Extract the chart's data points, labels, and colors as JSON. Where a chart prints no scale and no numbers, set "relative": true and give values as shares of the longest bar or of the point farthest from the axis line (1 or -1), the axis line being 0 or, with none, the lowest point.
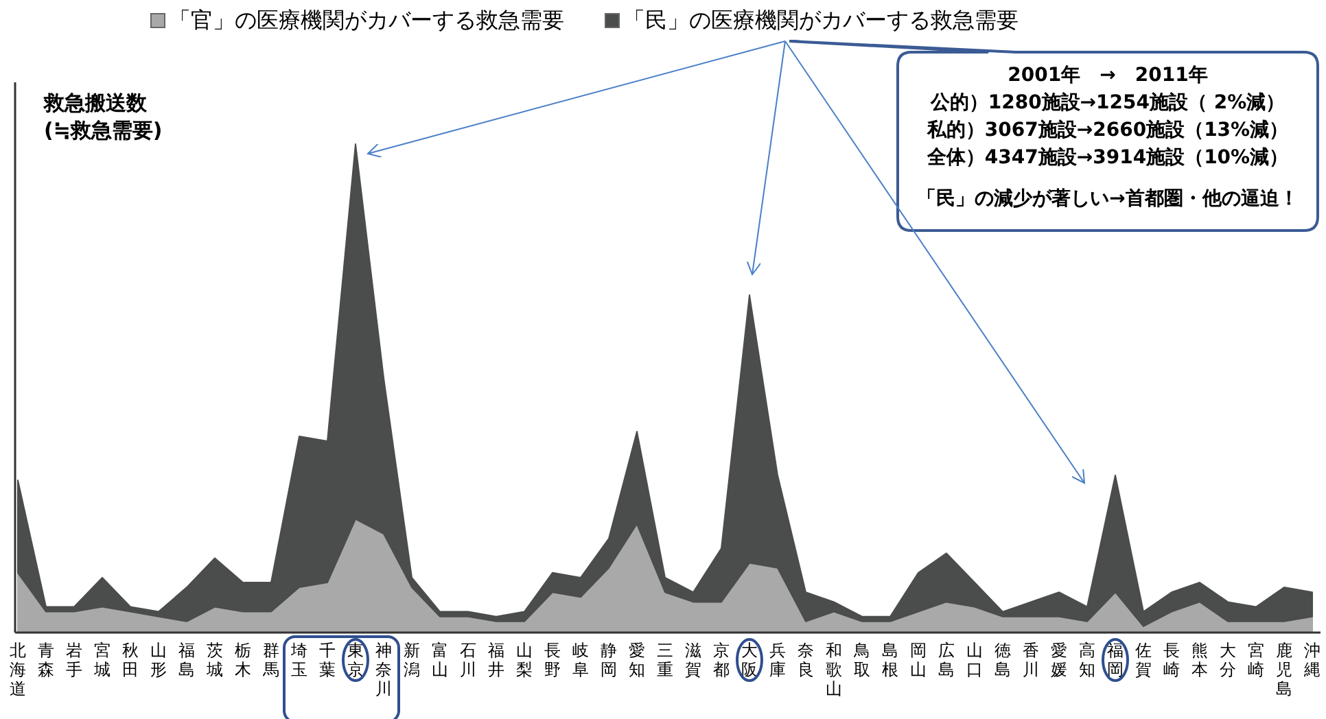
{
  "chart_data": {
    "type": "area",
    "stacked": true,
    "relative": true,
    "legend": "top",
    "ylabel": "救急搬送数\n(≒救急需要)",
    "categories": [
      "北海道",
      "青森",
      "岩手",
      "宮城",
      "秋田",
      "山形",
      "福島",
      "茨城",
      "栃木",
      "群馬",
      "埼玉",
      "千葉",
      "東京",
      "神奈川",
      "新潟",
      "富山",
      "石川",
      "福井",
      "山梨",
      "長野",
      "岐阜",
      "静岡",
      "愛知",
      "三重",
      "滋賀",
      "京都",
      "大阪",
      "兵庫",
      "奈良",
      "和歌山",
      "鳥取",
      "島根",
      "岡山",
      "広島",
      "山口",
      "徳島",
      "香川",
      "愛媛",
      "高知",
      "福岡",
      "佐賀",
      "長崎",
      "熊本",
      "大分",
      "宮崎",
      "鹿児島",
      "沖縄"
    ],
    "series": [
      {
        "name": "「官」の医療機関がカバーする救急需要",
        "color": "#a9a9a9",
        "values": [
          0.12,
          0.04,
          0.04,
          0.05,
          0.04,
          0.03,
          0.02,
          0.05,
          0.04,
          0.04,
          0.09,
          0.1,
          0.23,
          0.2,
          0.09,
          0.03,
          0.03,
          0.02,
          0.02,
          0.08,
          0.07,
          0.13,
          0.22,
          0.08,
          0.06,
          0.06,
          0.14,
          0.13,
          0.02,
          0.04,
          0.02,
          0.02,
          0.04,
          0.06,
          0.05,
          0.03,
          0.03,
          0.03,
          0.02,
          0.08,
          0.01,
          0.04,
          0.06,
          0.02,
          0.02,
          0.02,
          0.03
        ]
      },
      {
        "name": "「民」の医療機関がカバーする救急需要",
        "color": "#4b4d4d",
        "values": [
          0.19,
          0.01,
          0.01,
          0.06,
          0.01,
          0.01,
          0.07,
          0.1,
          0.06,
          0.06,
          0.31,
          0.29,
          0.77,
          0.32,
          0.02,
          0.01,
          0.01,
          0.01,
          0.02,
          0.04,
          0.04,
          0.06,
          0.19,
          0.03,
          0.02,
          0.11,
          0.55,
          0.19,
          0.06,
          0.02,
          0.01,
          0.01,
          0.08,
          0.1,
          0.05,
          0.01,
          0.03,
          0.05,
          0.03,
          0.24,
          0.03,
          0.04,
          0.04,
          0.04,
          0.03,
          0.07,
          0.05
        ]
      }
    ],
    "annotations": [
      "2001年　→　2011年",
      "公的）1280施設→1254施設（  2%減）",
      "私的）3067施設→2660施設（13%減）",
      "全体）4347施設→3914施設（10%減）",
      "「民」の減少が著しい→首都圏・他の逼迫！"
    ]
  }
}
